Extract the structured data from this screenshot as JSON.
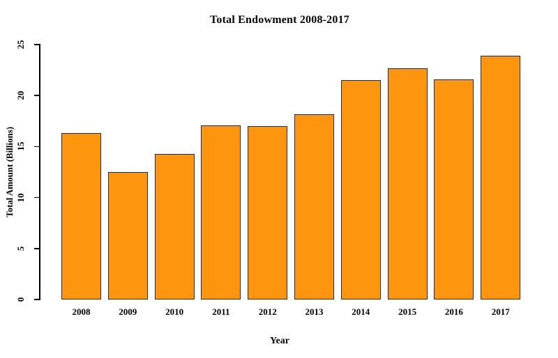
{
  "chart_data": {
    "type": "bar",
    "title": "Total Endowment 2008-2017",
    "xlabel": "Year",
    "ylabel": "Total Amount (Billions)",
    "categories": [
      "2008",
      "2009",
      "2010",
      "2011",
      "2012",
      "2013",
      "2014",
      "2015",
      "2016",
      "2017"
    ],
    "values": [
      16.3,
      12.5,
      14.3,
      17.1,
      17.0,
      18.2,
      21.5,
      22.7,
      21.6,
      23.9
    ],
    "ylim": [
      0,
      25
    ],
    "yticks": [
      0,
      5,
      10,
      15,
      20,
      25
    ],
    "grid": false,
    "legend": "none",
    "colors": {
      "bar_fill": "#FD950E",
      "bar_border": "#332B1D",
      "axis": "#000000",
      "background": "#FFFFFF"
    }
  }
}
